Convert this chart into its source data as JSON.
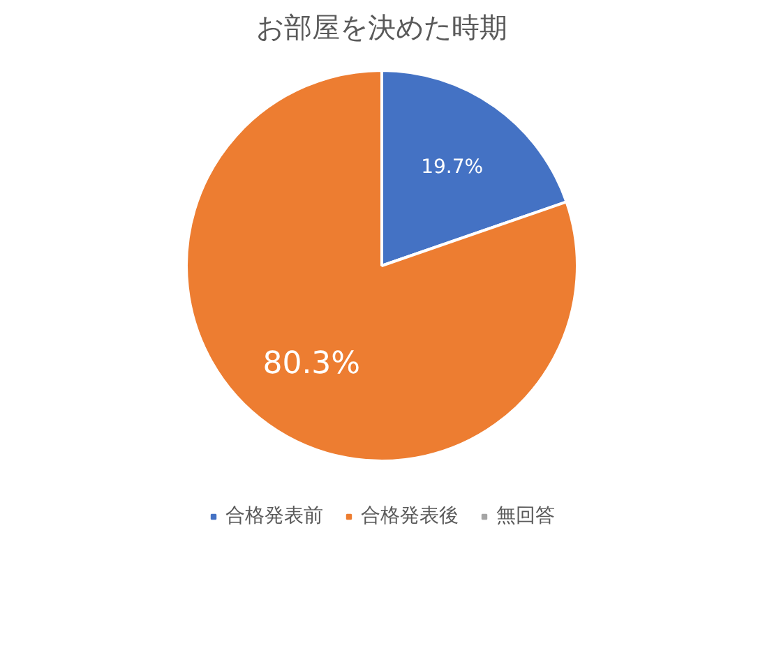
{
  "chart_data": {
    "type": "pie",
    "title": "お部屋を決めた時期",
    "categories": [
      "合格発表前",
      "合格発表後",
      "無回答"
    ],
    "values": [
      19.7,
      80.3,
      0
    ],
    "colors": [
      "#4472c4",
      "#ed7d31",
      "#a5a5a5"
    ],
    "value_labels": [
      "19.7%",
      "80.3%",
      null
    ],
    "legend": "bottom"
  }
}
